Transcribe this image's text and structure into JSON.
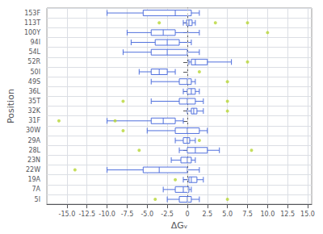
{
  "chart_data": {
    "type": "boxplot",
    "orientation": "horizontal",
    "xlabel": "ΔGᵥ",
    "ylabel": "Position",
    "categories": [
      "153F",
      "113T",
      "100Y",
      "94I",
      "54L",
      "52R",
      "50I",
      "49S",
      "36L",
      "35T",
      "32K",
      "31F",
      "30W",
      "29A",
      "28L",
      "23N",
      "22W",
      "19A",
      "7A",
      "5I"
    ],
    "boxes": [
      {
        "whislo": -10.0,
        "q1": -5.5,
        "med": -1.5,
        "q3": 0.5,
        "whishi": 1.5,
        "fliers": []
      },
      {
        "whislo": -0.5,
        "q1": -0.1,
        "med": 0.2,
        "q3": 0.6,
        "whishi": 1.0,
        "fliers": [
          -3.5,
          3.5,
          7.5
        ]
      },
      {
        "whislo": -7.5,
        "q1": -4.5,
        "med": -3.0,
        "q3": -1.5,
        "whishi": 1.5,
        "fliers": [
          10.0
        ]
      },
      {
        "whislo": -7.0,
        "q1": -4.0,
        "med": -2.5,
        "q3": -1.0,
        "whishi": 0.5,
        "fliers": []
      },
      {
        "whislo": -8.0,
        "q1": -4.5,
        "med": -2.5,
        "q3": 0.0,
        "whishi": 1.5,
        "fliers": []
      },
      {
        "whislo": 0.2,
        "q1": 0.5,
        "med": 1.0,
        "q3": 2.5,
        "whishi": 5.5,
        "fliers": [
          7.5
        ]
      },
      {
        "whislo": -6.0,
        "q1": -4.5,
        "med": -3.5,
        "q3": -2.5,
        "whishi": -1.5,
        "fliers": [
          1.5
        ]
      },
      {
        "whislo": -4.5,
        "q1": -1.0,
        "med": 0.0,
        "q3": 0.5,
        "whishi": 1.0,
        "fliers": [
          5.0
        ]
      },
      {
        "whislo": -0.5,
        "q1": 0.0,
        "med": 0.5,
        "q3": 1.0,
        "whishi": 1.5,
        "fliers": []
      },
      {
        "whislo": -4.5,
        "q1": -1.0,
        "med": 0.0,
        "q3": 1.0,
        "whishi": 2.0,
        "fliers": [
          -8.0,
          5.0
        ]
      },
      {
        "whislo": 0.0,
        "q1": 0.5,
        "med": 0.8,
        "q3": 1.2,
        "whishi": 2.0,
        "fliers": [
          5.0
        ]
      },
      {
        "whislo": -10.0,
        "q1": -4.5,
        "med": -3.0,
        "q3": -1.5,
        "whishi": -0.5,
        "fliers": [
          -16.0,
          -9.0
        ]
      },
      {
        "whislo": -5.0,
        "q1": -1.5,
        "med": 0.0,
        "q3": 1.5,
        "whishi": 2.5,
        "fliers": [
          -8.0
        ]
      },
      {
        "whislo": -1.5,
        "q1": -0.5,
        "med": 0.0,
        "q3": 0.3,
        "whishi": 1.0,
        "fliers": [
          1.5
        ]
      },
      {
        "whislo": -1.0,
        "q1": 0.0,
        "med": 1.0,
        "q3": 2.5,
        "whishi": 4.0,
        "fliers": [
          -6.0,
          8.0
        ]
      },
      {
        "whislo": -2.0,
        "q1": -0.8,
        "med": 0.0,
        "q3": 0.5,
        "whishi": 1.0,
        "fliers": []
      },
      {
        "whislo": -10.0,
        "q1": -5.5,
        "med": -3.5,
        "q3": 0.0,
        "whishi": 1.5,
        "fliers": [
          -14.0
        ]
      },
      {
        "whislo": -0.5,
        "q1": 0.2,
        "med": 0.5,
        "q3": 1.2,
        "whishi": 2.0,
        "fliers": [
          -1.5
        ]
      },
      {
        "whislo": -3.0,
        "q1": -1.5,
        "med": -0.5,
        "q3": 0.2,
        "whishi": 0.5,
        "fliers": []
      },
      {
        "whislo": -2.5,
        "q1": -1.0,
        "med": 0.0,
        "q3": 0.5,
        "whishi": 1.5,
        "fliers": [
          -4.0,
          5.0
        ]
      }
    ],
    "xlim": [
      -17.5,
      15.5
    ],
    "xticks": [
      {
        "value": -15.0,
        "label": "-15.0"
      },
      -12.5,
      {
        "value": -10.0,
        "label": "-10.0"
      },
      -7.5,
      {
        "value": -5.0,
        "label": "-5.0"
      },
      -2.5,
      0,
      2.5,
      {
        "value": 5.0,
        "label": "5.0"
      },
      7.5,
      {
        "value": 10.0,
        "label": "10.0"
      },
      12.5,
      {
        "value": 15.0,
        "label": "15.0"
      }
    ],
    "vline": {
      "x": 0.0,
      "color": "#cccccc",
      "line_style": "dashed"
    },
    "grid": true
  }
}
